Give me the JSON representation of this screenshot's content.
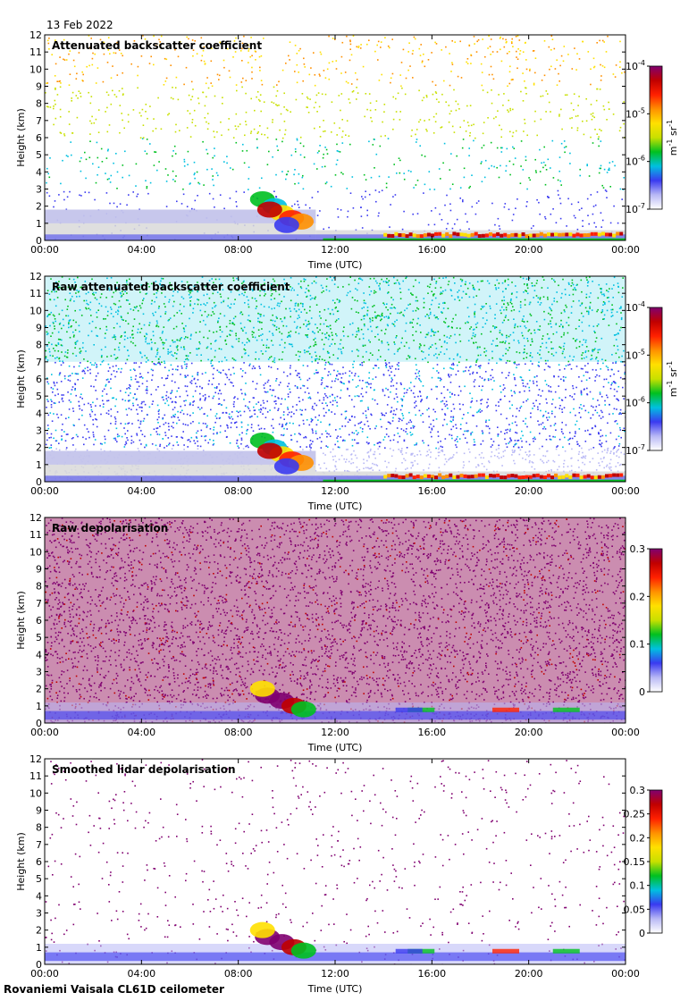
{
  "date": "13 Feb 2022",
  "footer": "Rovaniemi Vaisala CL61D ceilometer",
  "colors": {
    "axis": "#000000",
    "missing": "#d9d9d9",
    "scale": [
      "#ffffff",
      "#b8b8f5",
      "#3a3af0",
      "#00c0e0",
      "#00c020",
      "#c8e000",
      "#ffe000",
      "#ff9000",
      "#ff2000",
      "#c00000",
      "#800070"
    ]
  },
  "chart_data": [
    {
      "type": "heatmap",
      "title": "Attenuated backscatter coefficient",
      "xlabel": "Time (UTC)",
      "ylabel": "Height (km)",
      "x_ticks": [
        "00:00",
        "04:00",
        "08:00",
        "12:00",
        "16:00",
        "20:00",
        "00:00"
      ],
      "y_ticks": [
        "0",
        "1",
        "2",
        "3",
        "4",
        "5",
        "6",
        "7",
        "8",
        "9",
        "10",
        "11",
        "12"
      ],
      "ylim": [
        0,
        12
      ],
      "xlim_hours": [
        0,
        24
      ],
      "colorbar": {
        "scale": "log",
        "ticks": [
          {
            "base": "10",
            "exp": "-4"
          },
          {
            "base": "10",
            "exp": "-5"
          },
          {
            "base": "10",
            "exp": "-6"
          },
          {
            "base": "10",
            "exp": "-7"
          }
        ],
        "unit_m": "m",
        "unit_m_exp": "-1",
        "unit_sr": " sr",
        "unit_sr_exp": "-1"
      },
      "features": [
        {
          "name": "low boundary layer",
          "hours": [
            0,
            24
          ],
          "km": [
            0,
            0.6
          ]
        },
        {
          "name": "cloud",
          "hours": [
            8.8,
            11.0
          ],
          "km": [
            0.6,
            3.3
          ]
        },
        {
          "name": "low cloud",
          "hours": [
            14.0,
            24.0
          ],
          "km": [
            0.1,
            0.5
          ]
        }
      ]
    },
    {
      "type": "heatmap",
      "title": "Raw attenuated backscatter coefficient",
      "xlabel": "Time (UTC)",
      "ylabel": "Height (km)",
      "x_ticks": [
        "00:00",
        "04:00",
        "08:00",
        "12:00",
        "16:00",
        "20:00",
        "00:00"
      ],
      "y_ticks": [
        "0",
        "1",
        "2",
        "3",
        "4",
        "5",
        "6",
        "7",
        "8",
        "9",
        "10",
        "11",
        "12"
      ],
      "ylim": [
        0,
        12
      ],
      "xlim_hours": [
        0,
        24
      ],
      "colorbar": {
        "scale": "log",
        "ticks": [
          {
            "base": "10",
            "exp": "-4"
          },
          {
            "base": "10",
            "exp": "-5"
          },
          {
            "base": "10",
            "exp": "-6"
          },
          {
            "base": "10",
            "exp": "-7"
          }
        ],
        "unit_m": "m",
        "unit_m_exp": "-1",
        "unit_sr": " sr",
        "unit_sr_exp": "-1"
      },
      "features": [
        {
          "name": "noise",
          "hours": [
            0,
            24
          ],
          "km": [
            0,
            12
          ]
        },
        {
          "name": "cloud",
          "hours": [
            8.8,
            11.0
          ],
          "km": [
            0.6,
            2.5
          ]
        }
      ]
    },
    {
      "type": "heatmap",
      "title": "Raw depolarisation",
      "xlabel": "Time (UTC)",
      "ylabel": "Height (km)",
      "x_ticks": [
        "00:00",
        "04:00",
        "08:00",
        "12:00",
        "16:00",
        "20:00",
        "00:00"
      ],
      "y_ticks": [
        "0",
        "1",
        "2",
        "3",
        "4",
        "5",
        "6",
        "7",
        "8",
        "9",
        "10",
        "11",
        "12"
      ],
      "ylim": [
        0,
        12
      ],
      "xlim_hours": [
        0,
        24
      ],
      "colorbar": {
        "scale": "linear",
        "ticks": [
          "0.3",
          "0.2",
          "0.1",
          "0"
        ]
      },
      "features": [
        {
          "name": "noise",
          "hours": [
            0,
            24
          ],
          "km": [
            0,
            12
          ]
        },
        {
          "name": "cloud",
          "hours": [
            8.8,
            11.0
          ],
          "km": [
            0.5,
            2.3
          ]
        }
      ]
    },
    {
      "type": "heatmap",
      "title": "Smoothed lidar depolarisation",
      "xlabel": "Time (UTC)",
      "ylabel": "Height (km)",
      "x_ticks": [
        "00:00",
        "04:00",
        "08:00",
        "12:00",
        "16:00",
        "20:00",
        "00:00"
      ],
      "y_ticks": [
        "0",
        "1",
        "2",
        "3",
        "4",
        "5",
        "6",
        "7",
        "8",
        "9",
        "10",
        "11",
        "12"
      ],
      "ylim": [
        0,
        12
      ],
      "xlim_hours": [
        0,
        24
      ],
      "colorbar": {
        "scale": "linear",
        "ticks": [
          "0.3",
          "0.25",
          "0.2",
          "0.15",
          "0.1",
          "0.05",
          "0"
        ]
      },
      "features": [
        {
          "name": "sparse noise",
          "hours": [
            0,
            24
          ],
          "km": [
            0,
            12
          ]
        },
        {
          "name": "cloud",
          "hours": [
            8.8,
            11.0
          ],
          "km": [
            0.5,
            2.8
          ]
        },
        {
          "name": "low layer",
          "hours": [
            0,
            24
          ],
          "km": [
            0,
            1.0
          ]
        }
      ]
    }
  ]
}
